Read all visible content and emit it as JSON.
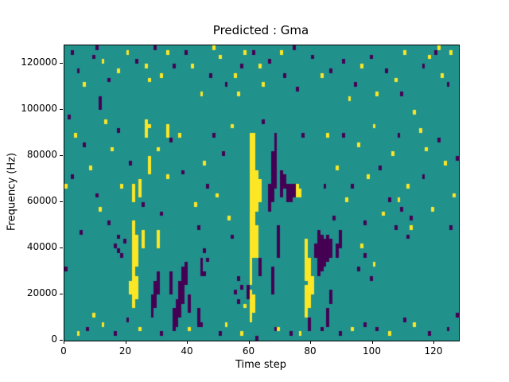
{
  "figure": {
    "title": "Predicted : Gma",
    "xlabel": "Time step",
    "ylabel": "Frequency (Hz)"
  },
  "chart_data": {
    "type": "heatmap",
    "title": "Predicted : Gma",
    "xlabel": "Time step",
    "ylabel": "Frequency (Hz)",
    "x_range": [
      0,
      128
    ],
    "y_range": [
      0,
      128000
    ],
    "x_ticks": [
      0,
      20,
      40,
      60,
      80,
      100,
      120
    ],
    "y_ticks": [
      0,
      20000,
      40000,
      60000,
      80000,
      100000,
      120000
    ],
    "grid": {
      "cols": 128,
      "rows": 64,
      "cell_freq_hz": 2000
    },
    "colors": {
      "low": "#440154",
      "background": "#21918c",
      "high": "#fde725"
    },
    "value_legend": {
      "0": "low",
      "1": "background",
      "2": "high"
    },
    "legend_position": "none",
    "runs": [
      [
        60,
        4,
        10,
        2
      ],
      [
        60,
        12,
        44,
        2
      ],
      [
        61,
        6,
        9,
        2
      ],
      [
        61,
        18,
        44,
        2
      ],
      [
        62,
        18,
        24,
        2
      ],
      [
        62,
        28,
        36,
        2
      ],
      [
        63,
        30,
        34,
        2
      ],
      [
        22,
        7,
        25,
        2
      ],
      [
        22,
        30,
        33,
        2
      ],
      [
        23,
        9,
        13,
        2
      ],
      [
        23,
        16,
        22,
        2
      ],
      [
        21,
        10,
        12,
        2
      ],
      [
        24,
        31,
        34,
        2
      ],
      [
        25,
        20,
        23,
        2
      ],
      [
        26,
        44,
        47,
        2
      ],
      [
        27,
        36,
        39,
        2
      ],
      [
        30,
        20,
        23,
        2
      ],
      [
        33,
        44,
        46,
        2
      ],
      [
        78,
        5,
        11,
        2
      ],
      [
        78,
        13,
        21,
        2
      ],
      [
        79,
        7,
        17,
        2
      ],
      [
        80,
        10,
        13,
        2
      ],
      [
        75,
        31,
        33,
        2
      ],
      [
        76,
        31,
        32,
        2
      ],
      [
        28,
        5,
        9,
        0
      ],
      [
        29,
        7,
        12,
        0
      ],
      [
        30,
        10,
        14,
        0
      ],
      [
        34,
        10,
        14,
        0
      ],
      [
        35,
        2,
        6,
        0
      ],
      [
        36,
        3,
        8,
        0
      ],
      [
        37,
        5,
        12,
        0
      ],
      [
        38,
        8,
        15,
        0
      ],
      [
        39,
        12,
        16,
        0
      ],
      [
        40,
        6,
        9,
        0
      ],
      [
        66,
        28,
        33,
        0
      ],
      [
        67,
        10,
        15,
        0
      ],
      [
        67,
        30,
        40,
        0
      ],
      [
        68,
        33,
        44,
        0
      ],
      [
        69,
        18,
        24,
        0
      ],
      [
        70,
        31,
        36,
        0
      ],
      [
        71,
        33,
        35,
        0
      ],
      [
        72,
        30,
        33,
        0
      ],
      [
        73,
        30,
        33,
        0
      ],
      [
        74,
        31,
        33,
        0
      ],
      [
        81,
        18,
        20,
        0
      ],
      [
        82,
        14,
        23,
        0
      ],
      [
        83,
        15,
        22,
        0
      ],
      [
        84,
        16,
        21,
        0
      ],
      [
        85,
        17,
        22,
        0
      ],
      [
        86,
        18,
        21,
        0
      ],
      [
        88,
        18,
        20,
        0
      ],
      [
        89,
        20,
        23,
        0
      ],
      [
        43,
        3,
        6,
        0
      ],
      [
        44,
        14,
        17,
        0
      ],
      [
        63,
        14,
        17,
        0
      ],
      [
        59,
        9,
        11,
        0
      ],
      [
        79,
        2,
        4,
        0
      ],
      [
        85,
        3,
        6,
        0
      ],
      [
        86,
        8,
        10,
        0
      ],
      [
        11,
        50,
        52,
        0
      ]
    ],
    "cells": [
      [
        20,
        62,
        2
      ],
      [
        26,
        59,
        2
      ],
      [
        27,
        56,
        2
      ],
      [
        31,
        57,
        2
      ],
      [
        44,
        53,
        2
      ],
      [
        50,
        61,
        2
      ],
      [
        55,
        57,
        2
      ],
      [
        56,
        53,
        2
      ],
      [
        58,
        62,
        2
      ],
      [
        63,
        59,
        2
      ],
      [
        64,
        55,
        2
      ],
      [
        70,
        62,
        2
      ],
      [
        83,
        57,
        2
      ],
      [
        92,
        52,
        2
      ],
      [
        96,
        59,
        2
      ],
      [
        107,
        56,
        2
      ],
      [
        110,
        62,
        2
      ],
      [
        118,
        61,
        2
      ],
      [
        12,
        60,
        2
      ],
      [
        17,
        58,
        2
      ],
      [
        33,
        62,
        2
      ],
      [
        41,
        59,
        2
      ],
      [
        6,
        55,
        2
      ],
      [
        101,
        53,
        2
      ],
      [
        113,
        49,
        2
      ],
      [
        122,
        57,
        2
      ],
      [
        125,
        62,
        2
      ],
      [
        9,
        61,
        0
      ],
      [
        14,
        56,
        0
      ],
      [
        23,
        60,
        0
      ],
      [
        29,
        63,
        0
      ],
      [
        35,
        59,
        0
      ],
      [
        39,
        62,
        0
      ],
      [
        47,
        57,
        0
      ],
      [
        52,
        55,
        0
      ],
      [
        57,
        59,
        0
      ],
      [
        61,
        62,
        0
      ],
      [
        66,
        60,
        0
      ],
      [
        71,
        57,
        0
      ],
      [
        75,
        54,
        0
      ],
      [
        80,
        61,
        0
      ],
      [
        86,
        58,
        0
      ],
      [
        90,
        60,
        0
      ],
      [
        94,
        55,
        0
      ],
      [
        99,
        61,
        0
      ],
      [
        104,
        58,
        0
      ],
      [
        109,
        53,
        0
      ],
      [
        116,
        59,
        0
      ],
      [
        120,
        62,
        0
      ],
      [
        124,
        55,
        0
      ],
      [
        4,
        58,
        0
      ],
      [
        2,
        62,
        0
      ],
      [
        3,
        44,
        2
      ],
      [
        8,
        37,
        2
      ],
      [
        11,
        28,
        2
      ],
      [
        15,
        41,
        2
      ],
      [
        18,
        33,
        2
      ],
      [
        27,
        46,
        2
      ],
      [
        30,
        41,
        2
      ],
      [
        33,
        35,
        2
      ],
      [
        42,
        29,
        2
      ],
      [
        45,
        38,
        2
      ],
      [
        49,
        31,
        2
      ],
      [
        53,
        26,
        2
      ],
      [
        88,
        37,
        2
      ],
      [
        91,
        30,
        2
      ],
      [
        95,
        42,
        2
      ],
      [
        98,
        35,
        2
      ],
      [
        103,
        27,
        2
      ],
      [
        106,
        40,
        2
      ],
      [
        111,
        33,
        2
      ],
      [
        115,
        45,
        2
      ],
      [
        119,
        28,
        2
      ],
      [
        123,
        38,
        2
      ],
      [
        126,
        31,
        2
      ],
      [
        13,
        47,
        2
      ],
      [
        37,
        44,
        2
      ],
      [
        54,
        46,
        2
      ],
      [
        85,
        44,
        2
      ],
      [
        100,
        46,
        2
      ],
      [
        117,
        41,
        2
      ],
      [
        2,
        35,
        0
      ],
      [
        6,
        42,
        0
      ],
      [
        10,
        31,
        0
      ],
      [
        14,
        25,
        0
      ],
      [
        17,
        45,
        0
      ],
      [
        21,
        38,
        0
      ],
      [
        25,
        29,
        0
      ],
      [
        31,
        27,
        0
      ],
      [
        34,
        43,
        0
      ],
      [
        38,
        36,
        0
      ],
      [
        43,
        24,
        0
      ],
      [
        46,
        33,
        0
      ],
      [
        51,
        40,
        0
      ],
      [
        54,
        22,
        0
      ],
      [
        87,
        26,
        0
      ],
      [
        90,
        44,
        0
      ],
      [
        93,
        33,
        0
      ],
      [
        97,
        25,
        0
      ],
      [
        102,
        37,
        0
      ],
      [
        105,
        30,
        0
      ],
      [
        108,
        44,
        0
      ],
      [
        112,
        26,
        0
      ],
      [
        116,
        35,
        0
      ],
      [
        121,
        43,
        0
      ],
      [
        125,
        24,
        0
      ],
      [
        127,
        39,
        0
      ],
      [
        5,
        23,
        0
      ],
      [
        19,
        21,
        0
      ],
      [
        48,
        44,
        0
      ],
      [
        64,
        47,
        0
      ],
      [
        77,
        44,
        0
      ],
      [
        84,
        33,
        0
      ],
      [
        4,
        1,
        2
      ],
      [
        12,
        3,
        2
      ],
      [
        24,
        2,
        2
      ],
      [
        40,
        2,
        2
      ],
      [
        52,
        3,
        2
      ],
      [
        57,
        1,
        2
      ],
      [
        76,
        1,
        2
      ],
      [
        93,
        2,
        2
      ],
      [
        105,
        1,
        2
      ],
      [
        113,
        3,
        2
      ],
      [
        9,
        5,
        2
      ],
      [
        69,
        2,
        2
      ],
      [
        7,
        2,
        0
      ],
      [
        16,
        1,
        0
      ],
      [
        20,
        4,
        0
      ],
      [
        31,
        1,
        0
      ],
      [
        44,
        3,
        0
      ],
      [
        50,
        1,
        0
      ],
      [
        62,
        0,
        0
      ],
      [
        68,
        2,
        0
      ],
      [
        73,
        1,
        0
      ],
      [
        83,
        2,
        0
      ],
      [
        89,
        1,
        0
      ],
      [
        97,
        3,
        0
      ],
      [
        101,
        2,
        0
      ],
      [
        110,
        4,
        0
      ],
      [
        118,
        1,
        0
      ],
      [
        124,
        2,
        0
      ],
      [
        127,
        5,
        0
      ],
      [
        0,
        15,
        0
      ],
      [
        1,
        48,
        0
      ],
      [
        0,
        33,
        2
      ],
      [
        16,
        20,
        0
      ],
      [
        17,
        19,
        0
      ],
      [
        17,
        22,
        0
      ],
      [
        18,
        18,
        0
      ],
      [
        45,
        14,
        0
      ],
      [
        45,
        19,
        0
      ],
      [
        46,
        17,
        0
      ],
      [
        55,
        10,
        0
      ],
      [
        56,
        8,
        0
      ],
      [
        56,
        13,
        0
      ],
      [
        57,
        11,
        0
      ],
      [
        58,
        7,
        2
      ],
      [
        95,
        15,
        0
      ],
      [
        97,
        18,
        0
      ],
      [
        99,
        13,
        0
      ],
      [
        96,
        20,
        2
      ],
      [
        100,
        16,
        2
      ],
      [
        107,
        24,
        0
      ],
      [
        109,
        28,
        0
      ],
      [
        111,
        22,
        0
      ],
      [
        108,
        30,
        2
      ],
      [
        112,
        24,
        2
      ],
      [
        10,
        63,
        0
      ],
      [
        48,
        63,
        2
      ],
      [
        74,
        63,
        0
      ],
      [
        121,
        63,
        2
      ]
    ]
  }
}
